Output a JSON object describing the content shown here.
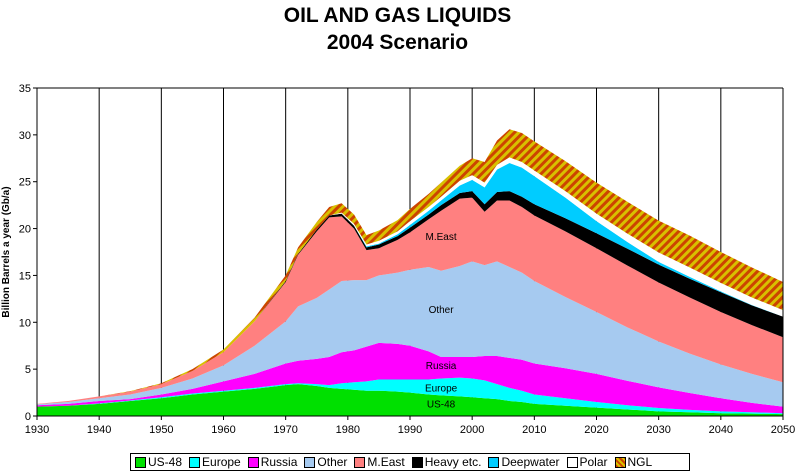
{
  "title_line1": "OIL AND GAS LIQUIDS",
  "title_line2": "2004 Scenario",
  "chart_data": {
    "type": "area",
    "stacked": true,
    "title": "OIL AND GAS LIQUIDS 2004 Scenario",
    "xlabel": "",
    "ylabel": "Billion Barrels a year (Gb/a)",
    "xlim": [
      1930,
      2050
    ],
    "ylim": [
      0,
      35
    ],
    "xticks": [
      1930,
      1940,
      1950,
      1960,
      1970,
      1980,
      1990,
      2000,
      2010,
      2020,
      2030,
      2040,
      2050
    ],
    "yticks": [
      0,
      5,
      10,
      15,
      20,
      25,
      30,
      35
    ],
    "grid": "vertical",
    "legend_position": "bottom",
    "x": [
      1930,
      1935,
      1940,
      1945,
      1950,
      1955,
      1960,
      1965,
      1970,
      1972,
      1975,
      1977,
      1979,
      1981,
      1983,
      1985,
      1988,
      1990,
      1993,
      1995,
      1998,
      2000,
      2002,
      2004,
      2006,
      2008,
      2010,
      2015,
      2020,
      2025,
      2030,
      2035,
      2040,
      2045,
      2050
    ],
    "series": [
      {
        "name": "US-48",
        "color": "#00e000",
        "values": [
          1.0,
          1.1,
          1.3,
          1.6,
          1.9,
          2.3,
          2.6,
          2.9,
          3.3,
          3.4,
          3.2,
          3.0,
          2.9,
          2.8,
          2.7,
          2.7,
          2.6,
          2.5,
          2.3,
          2.2,
          2.1,
          2.0,
          1.9,
          1.8,
          1.6,
          1.5,
          1.3,
          1.1,
          0.9,
          0.7,
          0.5,
          0.4,
          0.3,
          0.25,
          0.2
        ]
      },
      {
        "name": "Europe",
        "color": "#00ffff",
        "values": [
          0.0,
          0.0,
          0.05,
          0.05,
          0.1,
          0.1,
          0.1,
          0.1,
          0.1,
          0.1,
          0.2,
          0.3,
          0.6,
          0.8,
          1.0,
          1.2,
          1.3,
          1.4,
          1.6,
          1.8,
          2.0,
          2.0,
          1.9,
          1.6,
          1.4,
          1.2,
          1.0,
          0.8,
          0.6,
          0.45,
          0.35,
          0.25,
          0.2,
          0.15,
          0.1
        ]
      },
      {
        "name": "Russia",
        "color": "#ff00ff",
        "values": [
          0.15,
          0.2,
          0.25,
          0.15,
          0.3,
          0.5,
          1.0,
          1.5,
          2.2,
          2.4,
          2.7,
          3.0,
          3.3,
          3.4,
          3.7,
          3.9,
          3.8,
          3.6,
          3.0,
          2.3,
          2.2,
          2.3,
          2.6,
          3.0,
          3.2,
          3.3,
          3.3,
          3.2,
          3.0,
          2.6,
          2.2,
          1.8,
          1.4,
          1.0,
          0.7
        ]
      },
      {
        "name": "Other",
        "color": "#a6caf0",
        "values": [
          0.1,
          0.2,
          0.3,
          0.5,
          0.7,
          1.1,
          1.7,
          3.0,
          4.5,
          5.8,
          6.5,
          7.2,
          7.6,
          7.5,
          7.1,
          7.2,
          7.6,
          8.1,
          9.0,
          9.2,
          9.7,
          10.2,
          9.7,
          10.1,
          9.7,
          9.3,
          8.8,
          7.6,
          6.6,
          5.7,
          4.9,
          4.2,
          3.6,
          3.1,
          2.6
        ]
      },
      {
        "name": "M.East",
        "color": "#ff8080",
        "values": [
          0.05,
          0.1,
          0.2,
          0.3,
          0.4,
          0.8,
          1.4,
          2.6,
          4.2,
          5.5,
          7.1,
          7.7,
          6.9,
          5.5,
          3.2,
          2.9,
          3.5,
          4.0,
          5.1,
          6.4,
          7.2,
          6.8,
          5.7,
          6.5,
          7.1,
          7.0,
          7.0,
          7.0,
          6.8,
          6.6,
          6.3,
          6.0,
          5.6,
          5.2,
          4.8
        ]
      },
      {
        "name": "Heavy etc.",
        "color": "#000000",
        "values": [
          0.0,
          0.0,
          0.0,
          0.0,
          0.0,
          0.0,
          0.0,
          0.0,
          0.1,
          0.1,
          0.2,
          0.2,
          0.3,
          0.3,
          0.3,
          0.4,
          0.4,
          0.5,
          0.5,
          0.6,
          0.6,
          0.7,
          0.8,
          0.9,
          1.0,
          1.1,
          1.2,
          1.4,
          1.6,
          1.8,
          1.9,
          2.0,
          2.1,
          2.1,
          2.2
        ]
      },
      {
        "name": "Deepwater",
        "color": "#00ccff",
        "values": [
          0.0,
          0.0,
          0.0,
          0.0,
          0.0,
          0.0,
          0.0,
          0.0,
          0.0,
          0.0,
          0.0,
          0.0,
          0.0,
          0.0,
          0.1,
          0.1,
          0.2,
          0.3,
          0.4,
          0.5,
          0.8,
          1.2,
          1.8,
          2.4,
          3.0,
          3.1,
          3.0,
          2.2,
          1.3,
          0.7,
          0.3,
          0.2,
          0.1,
          0.05,
          0.0
        ]
      },
      {
        "name": "Polar",
        "color": "#ffffff",
        "values": [
          0.0,
          0.0,
          0.0,
          0.0,
          0.0,
          0.0,
          0.0,
          0.0,
          0.0,
          0.0,
          0.0,
          0.0,
          0.1,
          0.2,
          0.2,
          0.3,
          0.3,
          0.4,
          0.4,
          0.4,
          0.5,
          0.5,
          0.5,
          0.5,
          0.6,
          0.6,
          0.6,
          0.7,
          0.8,
          0.9,
          1.0,
          1.0,
          0.9,
          0.8,
          0.7
        ]
      },
      {
        "name": "NGL",
        "color": "#cc4400",
        "values": [
          0.0,
          0.0,
          0.0,
          0.05,
          0.1,
          0.2,
          0.3,
          0.4,
          0.6,
          0.7,
          0.8,
          0.9,
          1.0,
          1.0,
          1.0,
          1.1,
          1.2,
          1.3,
          1.4,
          1.5,
          1.6,
          1.8,
          2.2,
          2.6,
          3.0,
          3.1,
          3.1,
          3.2,
          3.3,
          3.4,
          3.4,
          3.4,
          3.3,
          3.2,
          3.0
        ]
      }
    ],
    "annotations": [
      "M.East",
      "Other",
      "Russia",
      "Europe",
      "US-48"
    ]
  },
  "legend": [
    "US-48",
    "Europe",
    "Russia",
    "Other",
    "M.East",
    "Heavy etc.",
    "Deepwater",
    "Polar",
    "NGL"
  ]
}
